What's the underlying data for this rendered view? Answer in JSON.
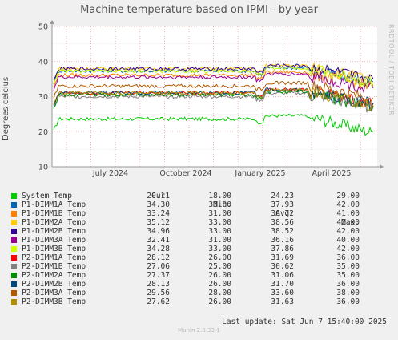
{
  "chart_data": {
    "type": "line",
    "title": "Machine temperature based on IPMI - by year",
    "ylabel": "Degrees celcius",
    "ylim": [
      10,
      50
    ],
    "y_ticks": [
      10,
      20,
      30,
      40,
      50
    ],
    "x_ticks": [
      "July 2024",
      "October 2024",
      "January 2025",
      "April 2025"
    ],
    "side_label": "RRDTOOL / TOBI OETIKER",
    "columns": [
      "Cur:",
      "Min:",
      "Avg:",
      "Max:"
    ],
    "series": [
      {
        "name": "System Temp",
        "color": "#00cc00",
        "cur": "20.11",
        "min": "18.00",
        "avg": "24.23",
        "max": "29.00"
      },
      {
        "name": "P1-DIMM1A Temp",
        "color": "#0066b3",
        "cur": "34.30",
        "min": "33.00",
        "avg": "37.93",
        "max": "42.00"
      },
      {
        "name": "P1-DIMM1B Temp",
        "color": "#ff8000",
        "cur": "33.24",
        "min": "31.00",
        "avg": "36.72",
        "max": "41.00"
      },
      {
        "name": "P1-DIMM2A Temp",
        "color": "#ffcc00",
        "cur": "35.12",
        "min": "33.00",
        "avg": "38.56",
        "max": "42.00"
      },
      {
        "name": "P1-DIMM2B Temp",
        "color": "#330099",
        "cur": "34.96",
        "min": "33.00",
        "avg": "38.52",
        "max": "42.00"
      },
      {
        "name": "P1-DIMM3A Temp",
        "color": "#990099",
        "cur": "32.41",
        "min": "31.00",
        "avg": "36.16",
        "max": "40.00"
      },
      {
        "name": "P1-DIMM3B Temp",
        "color": "#ccff00",
        "cur": "34.28",
        "min": "33.00",
        "avg": "37.86",
        "max": "42.00"
      },
      {
        "name": "P2-DIMM1A Temp",
        "color": "#ff0000",
        "cur": "28.12",
        "min": "26.00",
        "avg": "31.69",
        "max": "36.00"
      },
      {
        "name": "P2-DIMM1B Temp",
        "color": "#808080",
        "cur": "27.06",
        "min": "25.00",
        "avg": "30.62",
        "max": "35.00"
      },
      {
        "name": "P2-DIMM2A Temp",
        "color": "#008f00",
        "cur": "27.37",
        "min": "26.00",
        "avg": "31.06",
        "max": "35.00"
      },
      {
        "name": "P2-DIMM2B Temp",
        "color": "#00487d",
        "cur": "28.13",
        "min": "26.00",
        "avg": "31.70",
        "max": "36.00"
      },
      {
        "name": "P2-DIMM3A Temp",
        "color": "#b35a00",
        "cur": "29.56",
        "min": "28.00",
        "avg": "33.60",
        "max": "38.00"
      },
      {
        "name": "P2-DIMM3B Temp",
        "color": "#b38f00",
        "cur": "27.62",
        "min": "26.00",
        "avg": "31.63",
        "max": "36.00"
      }
    ]
  },
  "last_update": "Last update:  Sat Jun  7 15:40:00 2025",
  "footer": "Munin 2.0.33-1"
}
